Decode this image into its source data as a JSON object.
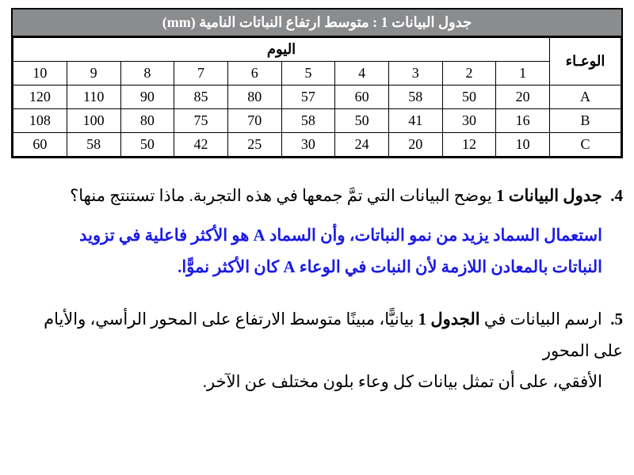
{
  "table": {
    "title": "جدول البيانات 1 : متوسط ارتفاع النباتات النامية (mm)",
    "pot_header": "الوعـاء",
    "day_header": "اليوم",
    "days": [
      "1",
      "2",
      "3",
      "4",
      "5",
      "6",
      "7",
      "8",
      "9",
      "10"
    ],
    "rows": [
      {
        "pot": "A",
        "vals": [
          "20",
          "50",
          "58",
          "60",
          "57",
          "80",
          "85",
          "90",
          "110",
          "120"
        ]
      },
      {
        "pot": "B",
        "vals": [
          "16",
          "30",
          "41",
          "50",
          "58",
          "70",
          "75",
          "80",
          "100",
          "108"
        ]
      },
      {
        "pot": "C",
        "vals": [
          "10",
          "12",
          "20",
          "24",
          "30",
          "25",
          "42",
          "50",
          "58",
          "60"
        ]
      }
    ],
    "title_bg": "#8b8c8e",
    "title_color": "#ffffff",
    "border_color": "#000000",
    "font_size_cell": 18
  },
  "q4": {
    "num": "4.",
    "text_prefix": "جدول البيانات 1",
    "text_rest": " يوضح البيانات التي تمَّ جمعها في هذه التجربة. ماذا تستنتج منها؟",
    "answer_line1": "استعمال السماد يزيد من نمو النباتات، وأن السماد A هو الأكثر فاعلية في تزويد",
    "answer_line2": "النباتات بالمعادن اللازمة لأن النبات في الوعاء A كان الأكثر نموًّا.",
    "answer_color": "#1a1ae6"
  },
  "q5": {
    "num": "5.",
    "line1_a": "ارسم البيانات في ",
    "line1_b": "الجدول 1",
    "line1_c": " بيانيًّا، مبينًا متوسط الارتفاع على المحور الرأسي، والأيام على المحور",
    "line2": "الأفقي، على أن تمثل بيانات كل وعاء بلون مختلف عن الآخر."
  }
}
